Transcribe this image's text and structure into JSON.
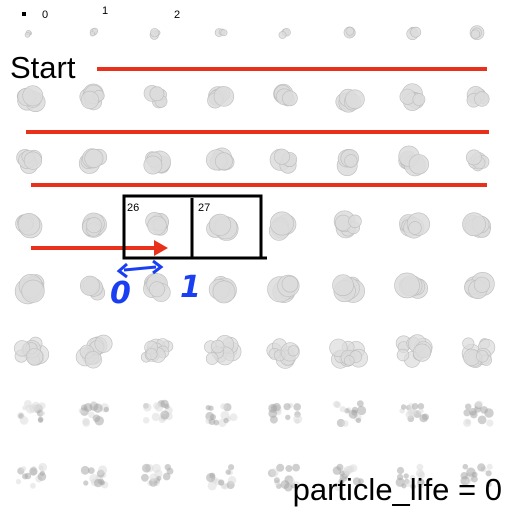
{
  "labels": {
    "start": "Start",
    "particle_life": "particle_life = 0",
    "frame_index_0": "0",
    "frame_index_1": "1",
    "frame_index_2": "2",
    "cell_a": "26",
    "cell_b": "27",
    "handwritten_0": "0",
    "handwritten_1": "1"
  },
  "sprite_sheet": {
    "columns": 8,
    "rows": 8
  },
  "colors": {
    "arrow_red": "#e8301a",
    "annotation_blue": "#1a3ff2",
    "box_black": "#000000",
    "smoke_light": "#dcdcdc",
    "smoke_dark": "#a8a8a8"
  }
}
